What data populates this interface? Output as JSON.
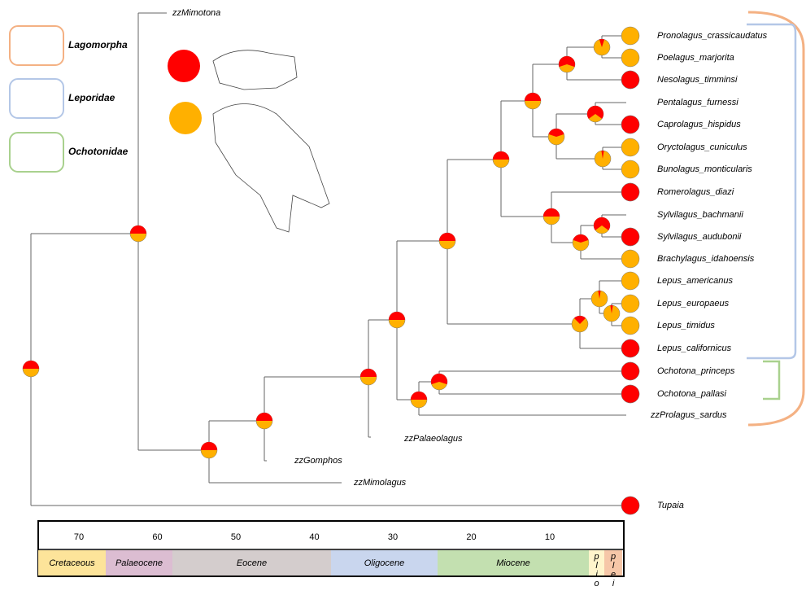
{
  "legend": [
    "Lagomorpha",
    "Leporidae",
    "Ochotonidae"
  ],
  "tips": [
    {
      "label": "Pronolagus_crassicaudatus",
      "red": 0
    },
    {
      "label": "Poelagus_marjorita",
      "red": 0
    },
    {
      "label": "Nesolagus_timminsi",
      "red": 100
    },
    {
      "label": "Pentalagus_furnessi"
    },
    {
      "label": "Caprolagus_hispidus",
      "red": 100
    },
    {
      "label": "Oryctolagus_cuniculus",
      "red": 0
    },
    {
      "label": "Bunolagus_monticularis",
      "red": 0
    },
    {
      "label": "Romerolagus_diazi",
      "red": 100
    },
    {
      "label": "Sylvilagus_bachmanii"
    },
    {
      "label": "Sylvilagus_audubonii",
      "red": 100
    },
    {
      "label": "Brachylagus_idahoensis",
      "red": 0
    },
    {
      "label": "Lepus_americanus",
      "red": 0
    },
    {
      "label": "Lepus_europaeus",
      "red": 0
    },
    {
      "label": "Lepus_timidus",
      "red": 0
    },
    {
      "label": "Lepus_californicus",
      "red": 100
    },
    {
      "label": "Ochotona_princeps",
      "red": 100
    },
    {
      "label": "Ochotona_pallasi",
      "red": 100
    },
    {
      "label": "zzProlagus_sardus"
    },
    {
      "label": "Tupaia",
      "red": 100
    },
    {
      "label": "zzMimotona"
    },
    {
      "label": "zzGomphos"
    },
    {
      "label": "zzMimolagus"
    },
    {
      "label": "zzPalaeolagus"
    }
  ],
  "internal_nodes_red_percent": [
    50,
    50,
    50,
    50,
    50,
    50,
    50,
    50,
    60,
    50,
    50,
    60,
    10,
    40,
    70,
    5,
    50,
    40,
    70,
    25,
    5,
    5
  ],
  "time_scale": {
    "ticks": [
      70,
      60,
      50,
      40,
      30,
      20,
      10
    ],
    "periods": [
      "Cretaceous",
      "Palaeocene",
      "Eocene",
      "Oligocene",
      "Miocene",
      "plio",
      "plei"
    ]
  }
}
